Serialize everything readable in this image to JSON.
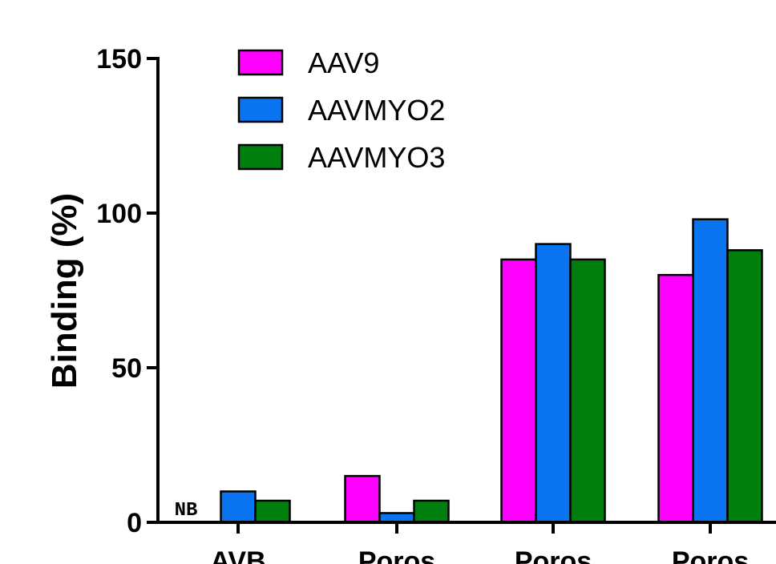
{
  "chart_data": {
    "type": "bar",
    "categories": [
      "AVB",
      "Poros",
      "Poros",
      "Poros"
    ],
    "series": [
      {
        "name": "AAV9",
        "color": "#ff00ff",
        "values": [
          0,
          15,
          85,
          80
        ]
      },
      {
        "name": "AAVMYO2",
        "color": "#0a74f0",
        "values": [
          10,
          3,
          90,
          98
        ]
      },
      {
        "name": "AAVMYO3",
        "color": "#007f0e",
        "values": [
          7,
          7,
          85,
          88
        ]
      }
    ],
    "ylabel": "Binding (%)",
    "ylim": [
      0,
      150
    ],
    "yticks": [
      0,
      50,
      100,
      150
    ],
    "annotations": [
      {
        "text": "NB",
        "category": "AVB",
        "series": "AAV9"
      }
    ],
    "legend": "top-left",
    "grid": false
  }
}
